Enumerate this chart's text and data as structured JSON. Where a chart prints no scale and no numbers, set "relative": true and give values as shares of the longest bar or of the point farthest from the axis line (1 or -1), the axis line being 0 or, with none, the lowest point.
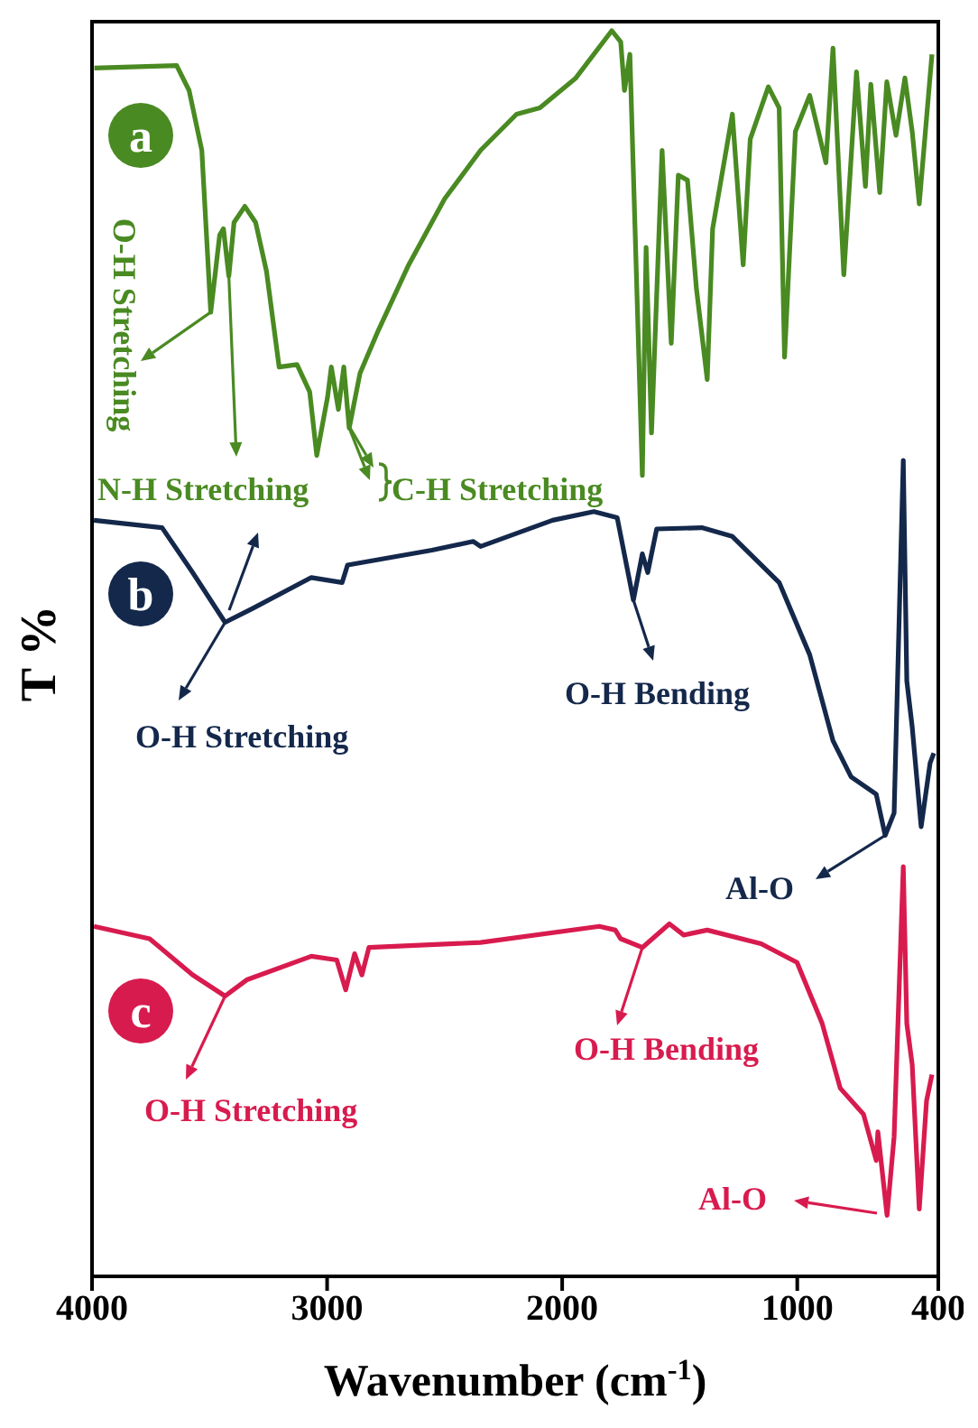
{
  "chart_data": {
    "type": "line",
    "relative": true,
    "xlabel": "Wavenumber (cm$^{-1}$)",
    "ylabel": "T %",
    "xlim": [
      4000,
      400
    ],
    "xticks": [
      4000,
      3000,
      2000,
      1000,
      400
    ],
    "legend": "left",
    "marker": "none",
    "line_style": "solid",
    "series": [
      {
        "name": "a",
        "color": "#4a8a22",
        "x": [
          3990,
          3640,
          3587,
          3533,
          3495,
          3457,
          3441,
          3418,
          3396,
          3350,
          3304,
          3258,
          3204,
          3128,
          3074,
          3044,
          2998,
          2982,
          2952,
          2929,
          2906,
          2860,
          2783,
          2653,
          2500,
          2347,
          2194,
          2095,
          1942,
          1789,
          1751,
          1735,
          1712,
          1659,
          1643,
          1620,
          1575,
          1536,
          1506,
          1467,
          1429,
          1383,
          1360,
          1276,
          1230,
          1200,
          1123,
          1077,
          1054,
          1008,
          947,
          878,
          848,
          802,
          748,
          710,
          687,
          649,
          619,
          580,
          542,
          511,
          481,
          427
        ],
        "values": [
          0.97,
          0.972,
          0.952,
          0.904,
          0.774,
          0.836,
          0.841,
          0.803,
          0.846,
          0.859,
          0.846,
          0.807,
          0.73,
          0.732,
          0.71,
          0.659,
          0.706,
          0.73,
          0.696,
          0.73,
          0.681,
          0.725,
          0.759,
          0.812,
          0.865,
          0.904,
          0.933,
          0.938,
          0.962,
          1.0,
          0.991,
          0.952,
          0.981,
          0.643,
          0.826,
          0.677,
          0.904,
          0.749,
          0.884,
          0.88,
          0.793,
          0.72,
          0.841,
          0.933,
          0.812,
          0.913,
          0.955,
          0.938,
          0.738,
          0.919,
          0.948,
          0.894,
          0.986,
          0.804,
          0.967,
          0.875,
          0.957,
          0.87,
          0.959,
          0.916,
          0.962,
          0.919,
          0.861,
          0.981
        ]
      },
      {
        "name": "b",
        "color": "#14284b",
        "x": [
          3992,
          3702,
          3572,
          3434,
          3319,
          3067,
          2936,
          2913,
          2554,
          2378,
          2347,
          2041,
          1865,
          1766,
          1697,
          1659,
          1636,
          1598,
          1406,
          1276,
          1077,
          947,
          848,
          771,
          664,
          626,
          588,
          549,
          534,
          511,
          473,
          435,
          419
        ],
        "values": [
          0.607,
          0.601,
          0.565,
          0.525,
          0.536,
          0.561,
          0.557,
          0.571,
          0.583,
          0.59,
          0.586,
          0.607,
          0.614,
          0.609,
          0.543,
          0.58,
          0.565,
          0.6,
          0.601,
          0.594,
          0.557,
          0.499,
          0.43,
          0.401,
          0.387,
          0.354,
          0.372,
          0.655,
          0.478,
          0.441,
          0.361,
          0.412,
          0.42
        ]
      },
      {
        "name": "c",
        "color": "#d81b4e",
        "x": [
          3992,
          3755,
          3572,
          3434,
          3342,
          3067,
          2959,
          2921,
          2883,
          2852,
          2822,
          2347,
          1842,
          1774,
          1751,
          1659,
          1544,
          1483,
          1383,
          1154,
          1001,
          894,
          817,
          718,
          664,
          657,
          618,
          588,
          549,
          534,
          511,
          481,
          450,
          427
        ],
        "values": [
          0.281,
          0.271,
          0.242,
          0.225,
          0.238,
          0.257,
          0.254,
          0.23,
          0.259,
          0.242,
          0.264,
          0.268,
          0.281,
          0.278,
          0.271,
          0.264,
          0.283,
          0.274,
          0.278,
          0.267,
          0.252,
          0.203,
          0.151,
          0.13,
          0.093,
          0.116,
          0.049,
          0.112,
          0.329,
          0.203,
          0.17,
          0.054,
          0.141,
          0.162
        ]
      }
    ],
    "annotations": [
      {
        "text": "O-H Stretching",
        "x": 3495,
        "y": 0.774
      },
      {
        "text": "N-H Stretching",
        "x": 3418,
        "y": 0.803
      },
      {
        "text": "C-H Stretching",
        "x": 2906,
        "y": 0.681
      },
      {
        "text": "O-H Stretching",
        "x": 3434,
        "y": 0.525
      },
      {
        "text": "O-H Bending",
        "x": 1697,
        "y": 0.543
      },
      {
        "text": "Al-O",
        "x": 626,
        "y": 0.354
      },
      {
        "text": "O-H Stretching",
        "x": 3434,
        "y": 0.225
      },
      {
        "text": "O-H Bending",
        "x": 1659,
        "y": 0.264
      },
      "Al-O"
    ]
  }
}
